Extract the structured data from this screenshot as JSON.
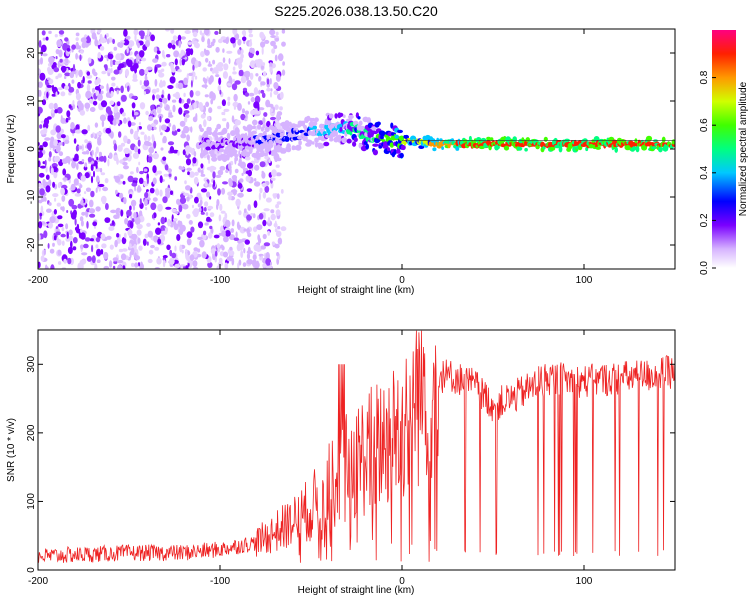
{
  "figure_title": "S225.2026.038.13.50.C20",
  "chart_data": [
    {
      "type": "heatmap",
      "title": "S225.2026.038.13.50.C20",
      "xlabel": "Height of straight line (km)",
      "ylabel": "Frequency (Hz)",
      "xlim": [
        -200,
        150
      ],
      "ylim": [
        -25,
        25
      ],
      "x_ticks": [
        -200,
        -100,
        0,
        100
      ],
      "y_ticks": [
        -20,
        -10,
        0,
        10,
        20
      ],
      "colorbar": {
        "label": "Normalized spectral amplitude",
        "range": [
          0,
          1
        ],
        "ticks": [
          "0.0",
          "0.2",
          "0.4",
          "0.6",
          "0.8"
        ]
      },
      "signal_trace": {
        "x": [
          -110,
          -90,
          -75,
          -60,
          -50,
          -40,
          -30,
          -25,
          -20,
          -15,
          -10,
          0,
          10,
          20,
          40,
          60,
          80,
          100,
          120,
          150
        ],
        "frequency": [
          1,
          1,
          2,
          3,
          3.5,
          4,
          4.5,
          4,
          3,
          2.5,
          2,
          1.5,
          1.5,
          1,
          1,
          1,
          1,
          1,
          1,
          1
        ],
        "peak_amplitude": [
          0.2,
          0.25,
          0.3,
          0.35,
          0.4,
          0.45,
          0.5,
          0.55,
          0.55,
          0.6,
          0.65,
          0.7,
          0.75,
          0.85,
          0.95,
          0.95,
          0.95,
          0.95,
          0.95,
          0.95
        ]
      },
      "noise_region": {
        "x_range": [
          -200,
          -75
        ],
        "amplitude": "low (0.0 - 0.2)"
      }
    },
    {
      "type": "line",
      "xlabel": "Height of straight line (km)",
      "ylabel": "SNR (10 * v/v)",
      "xlim": [
        -200,
        150
      ],
      "ylim": [
        0,
        350
      ],
      "x_ticks": [
        -200,
        -100,
        0,
        100
      ],
      "y_ticks": [
        0,
        100,
        200,
        300
      ],
      "series": [
        {
          "name": "SNR",
          "color": "#ee2222",
          "x": [
            -200,
            -150,
            -120,
            -100,
            -80,
            -70,
            -60,
            -50,
            -40,
            -30,
            -20,
            -10,
            0,
            5,
            10,
            20,
            25,
            30,
            40,
            50,
            60,
            80,
            100,
            120,
            140,
            150
          ],
          "y": [
            20,
            25,
            25,
            30,
            40,
            55,
            70,
            90,
            120,
            150,
            170,
            190,
            210,
            240,
            265,
            280,
            285,
            280,
            270,
            240,
            250,
            280,
            275,
            280,
            285,
            290
          ],
          "dropout_range": [
            25,
            145
          ],
          "dropout_floor": 20
        }
      ]
    }
  ]
}
